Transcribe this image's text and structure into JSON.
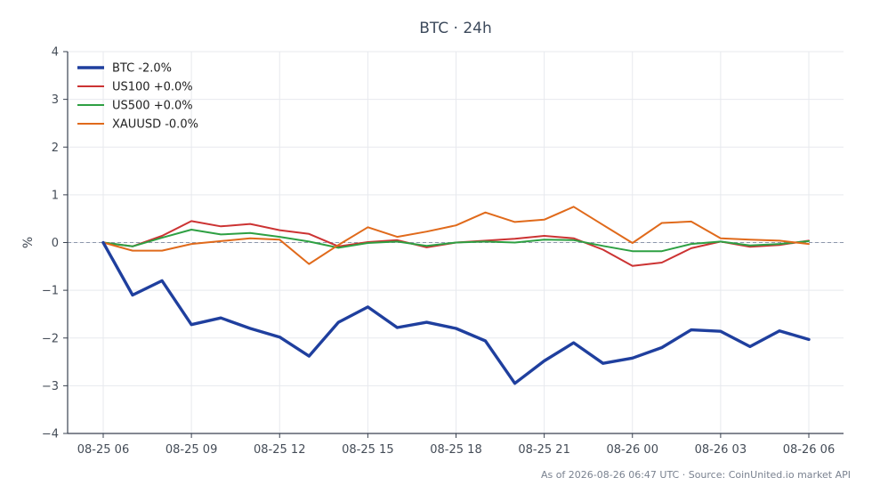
{
  "chart_data": {
    "type": "line",
    "title": "BTC · 24h",
    "xlabel": "",
    "ylabel": "%",
    "ylim": [
      -4,
      4
    ],
    "yticks": [
      "4",
      "3",
      "2",
      "1",
      "0",
      "−1",
      "−2",
      "−3",
      "−4"
    ],
    "ytick_values": [
      4,
      3,
      2,
      1,
      0,
      -1,
      -2,
      -3,
      -4
    ],
    "x_tick_labels": [
      "08-25 06",
      "08-25 09",
      "08-25 12",
      "08-25 15",
      "08-25 18",
      "08-25 21",
      "08-26 00",
      "08-26 03",
      "08-26 06"
    ],
    "x_tick_hours": [
      0,
      3,
      6,
      9,
      12,
      15,
      18,
      21,
      24
    ],
    "x_hours": [
      0,
      1,
      2,
      3,
      4,
      5,
      6,
      7,
      8,
      9,
      10,
      11,
      12,
      13,
      14,
      15,
      16,
      17,
      18,
      19,
      20,
      21,
      22,
      23,
      24
    ],
    "grid": true,
    "zero_line": true,
    "legend_position": "top-left",
    "series": [
      {
        "name": "BTC -2.0%",
        "color": "#1f3f9e",
        "bold": true,
        "values": [
          0.0,
          -1.1,
          -0.8,
          -1.72,
          -1.58,
          -1.8,
          -1.98,
          -2.38,
          -1.67,
          -1.35,
          -1.78,
          -1.67,
          -1.8,
          -2.06,
          -2.95,
          -2.48,
          -2.1,
          -2.53,
          -2.42,
          -2.2,
          -1.83,
          -1.86,
          -2.18,
          -1.85,
          -2.03
        ]
      },
      {
        "name": "US100 +0.0%",
        "color": "#cc3333",
        "bold": false,
        "values": [
          0.0,
          -0.08,
          0.14,
          0.45,
          0.34,
          0.39,
          0.26,
          0.18,
          -0.08,
          0.01,
          0.05,
          -0.1,
          0.0,
          0.04,
          0.08,
          0.14,
          0.09,
          -0.15,
          -0.49,
          -0.42,
          -0.12,
          0.02,
          -0.09,
          -0.05,
          0.04
        ]
      },
      {
        "name": "US500 +0.0%",
        "color": "#2ea043",
        "bold": false,
        "values": [
          0.0,
          -0.08,
          0.1,
          0.27,
          0.17,
          0.2,
          0.12,
          0.02,
          -0.11,
          -0.01,
          0.02,
          -0.07,
          0.0,
          0.02,
          0.0,
          0.06,
          0.05,
          -0.07,
          -0.18,
          -0.18,
          -0.03,
          0.02,
          -0.06,
          -0.03,
          0.03
        ]
      },
      {
        "name": "XAUUSD -0.0%",
        "color": "#e06a1b",
        "bold": false,
        "values": [
          0.0,
          -0.17,
          -0.17,
          -0.03,
          0.03,
          0.09,
          0.06,
          -0.45,
          -0.05,
          0.32,
          0.12,
          0.23,
          0.36,
          0.63,
          0.43,
          0.48,
          0.75,
          0.37,
          -0.01,
          0.41,
          0.44,
          0.09,
          0.06,
          0.04,
          -0.03
        ]
      }
    ]
  },
  "footer": "As of 2026-08-26 06:47 UTC · Source: CoinUnited.io market API",
  "colors": {
    "axis": "#3a4250",
    "grid": "#e7e9ee",
    "zero_line": "#8d97ab",
    "title": "#3d4a5c"
  }
}
